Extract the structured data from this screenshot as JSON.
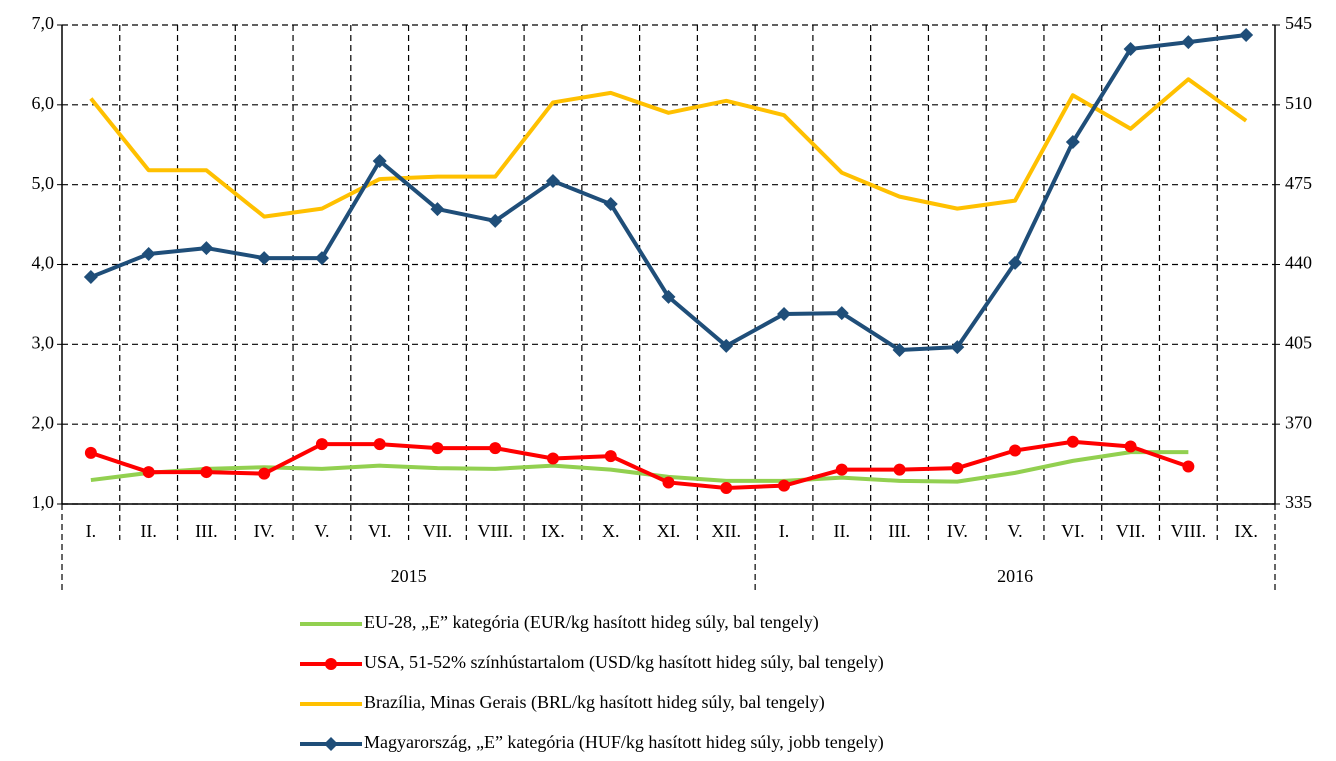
{
  "chart_data": {
    "type": "line",
    "categories": [
      "I.",
      "II.",
      "III.",
      "IV.",
      "V.",
      "VI.",
      "VII.",
      "VIII.",
      "IX.",
      "X.",
      "XI.",
      "XII.",
      "I.",
      "II.",
      "III.",
      "IV.",
      "V.",
      "VI.",
      "VII.",
      "VIII.",
      "IX."
    ],
    "groups": [
      {
        "label": "2015",
        "span": 12
      },
      {
        "label": "2016",
        "span": 9
      }
    ],
    "ylim": [
      1,
      7
    ],
    "yticks": [
      {
        "value": 1,
        "label": "1,0"
      },
      {
        "value": 2,
        "label": "2,0"
      },
      {
        "value": 3,
        "label": "3,0"
      },
      {
        "value": 4,
        "label": "4,0"
      },
      {
        "value": 5,
        "label": "5,0"
      },
      {
        "value": 6,
        "label": "6,0"
      },
      {
        "value": 7,
        "label": "7,0"
      }
    ],
    "y2lim": [
      335,
      545
    ],
    "y2ticks": [
      335,
      370,
      405,
      440,
      475,
      510,
      545
    ],
    "grid": true,
    "legend": "bottom",
    "series": [
      {
        "name": "EU-28, „E” kategória (EUR/kg hasított hideg súly, bal tengely)",
        "color": "#92d050",
        "marker": null,
        "values": [
          1.3,
          1.39,
          1.44,
          1.46,
          1.44,
          1.48,
          1.45,
          1.44,
          1.48,
          1.43,
          1.34,
          1.29,
          1.29,
          1.33,
          1.29,
          1.28,
          1.39,
          1.54,
          1.65,
          1.65,
          null
        ]
      },
      {
        "name": "USA, 51-52% színhústartalom (USD/kg hasított hideg súly, bal tengely)",
        "color": "#ff0000",
        "marker": "circle",
        "values": [
          1.64,
          1.4,
          1.4,
          1.38,
          1.75,
          1.75,
          1.7,
          1.7,
          1.57,
          1.6,
          1.27,
          1.2,
          1.23,
          1.43,
          1.43,
          1.45,
          1.67,
          1.78,
          1.72,
          1.47,
          null
        ]
      },
      {
        "name": "Brazília, Minas Gerais (BRL/kg hasított hideg súly, bal tengely)",
        "color": "#ffc000",
        "marker": null,
        "values": [
          6.08,
          5.18,
          5.18,
          4.6,
          4.7,
          5.07,
          5.1,
          5.1,
          6.03,
          6.15,
          5.9,
          6.05,
          5.87,
          5.15,
          4.85,
          4.7,
          4.8,
          6.12,
          5.7,
          6.32,
          5.8
        ]
      },
      {
        "name": "Magyarország, „E” kategória (HUF/kg hasított hideg súly, jobb tengely)",
        "color": "#1f4e79",
        "marker": "diamond",
        "axis": "y2",
        "values": [
          434.5,
          444.6,
          447.2,
          442.8,
          442.8,
          485.4,
          464.3,
          459.1,
          476.6,
          466.5,
          425.8,
          404.3,
          418.3,
          418.7,
          402.5,
          403.8,
          440.7,
          493.7,
          534.5,
          537.5,
          540.6
        ]
      }
    ]
  }
}
